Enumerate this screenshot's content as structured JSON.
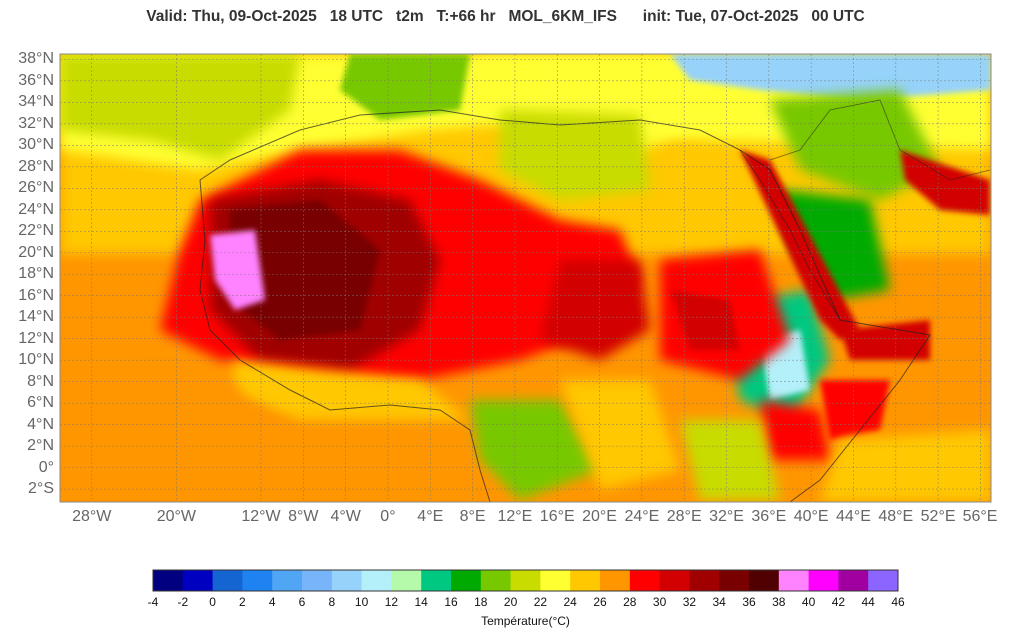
{
  "header": {
    "title": "Valid: Thu, 09-Oct-2025   18 UTC   t2m   T:+66 hr   MOL_6KM_IFS      init: Tue, 07-Oct-2025   00 UTC"
  },
  "map": {
    "region": "North Africa",
    "lon_range": [
      -31,
      57
    ],
    "lat_range": [
      -3.2,
      38.5
    ],
    "latitude_labels": [
      "38°N",
      "36°N",
      "34°N",
      "32°N",
      "30°N",
      "28°N",
      "26°N",
      "24°N",
      "22°N",
      "20°N",
      "18°N",
      "16°N",
      "14°N",
      "12°N",
      "10°N",
      "8°N",
      "6°N",
      "4°N",
      "2°N",
      "0°",
      "2°S"
    ],
    "latitude_values": [
      38,
      36,
      34,
      32,
      30,
      28,
      26,
      24,
      22,
      20,
      18,
      16,
      14,
      12,
      10,
      8,
      6,
      4,
      2,
      0,
      -2
    ],
    "longitude_labels": [
      "28°W",
      "20°W",
      "12°W",
      "8°W",
      "4°W",
      "0°",
      "4°E",
      "8°E",
      "12°E",
      "16°E",
      "20°E",
      "24°E",
      "28°E",
      "32°E",
      "36°E",
      "40°E",
      "44°E",
      "48°E",
      "52°E",
      "56°E"
    ],
    "longitude_values": [
      -28,
      -20,
      -12,
      -8,
      -4,
      0,
      4,
      8,
      12,
      16,
      20,
      24,
      28,
      32,
      36,
      40,
      44,
      48,
      52,
      56
    ],
    "grid": true
  },
  "colorbar": {
    "label": "Température(°C)",
    "tick_labels": [
      "-4",
      "-2",
      "0",
      "2",
      "4",
      "6",
      "8",
      "10",
      "12",
      "14",
      "16",
      "18",
      "20",
      "22",
      "24",
      "26",
      "28",
      "30",
      "32",
      "34",
      "36",
      "38",
      "40",
      "42",
      "44",
      "46"
    ],
    "colors": [
      "#000080",
      "#0000c0",
      "#1464d2",
      "#1e82f0",
      "#50a5f5",
      "#78b4fa",
      "#96d2fa",
      "#b4f0fa",
      "#b4faaa",
      "#00c880",
      "#00aa00",
      "#78c800",
      "#c8dc00",
      "#ffff32",
      "#ffc800",
      "#ff9600",
      "#ff0000",
      "#d20000",
      "#a00000",
      "#780000",
      "#500000",
      "#ff82ff",
      "#ff00ff",
      "#a000a0",
      "#8c64ff"
    ]
  }
}
